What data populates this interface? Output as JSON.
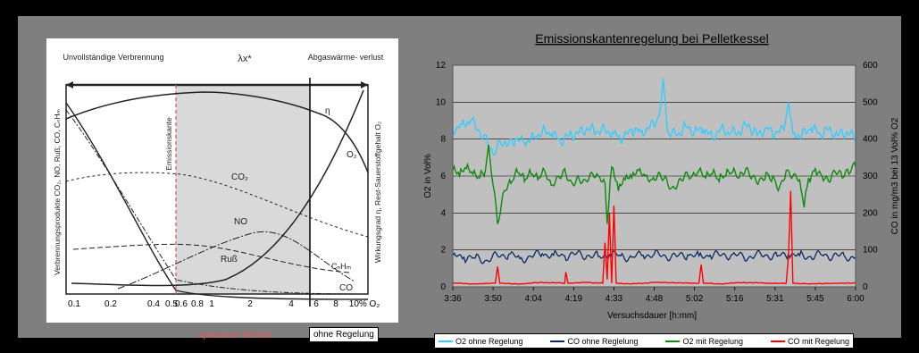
{
  "colors": {
    "page_bg": "#000000",
    "slide_bg": "#7f7f7f",
    "plot_bg": "#c0c0c0",
    "o2_without": "#33ccff",
    "co_without": "#0a2a66",
    "o2_with": "#0b8a0b",
    "co_with": "#ff0000",
    "emission_edge": "#e05a5a"
  },
  "left_figure": {
    "kind": "scanned diagram",
    "header": {
      "region_incomplete": "Unvollständige Verbrennung",
      "region_lambda": "λx*",
      "region_exhaust": "Abgaswärme- verlust"
    },
    "y_left_label": "Verbrennungsprodukte CO₂, NO, Ruß, CO, CₙHₘ",
    "y_right_label": "Wirkungsgrad η, Rest-Sauerstoffgehalt O₂",
    "emission_edge_label": "Emissionskante",
    "curve_labels": [
      "η",
      "O₂",
      "CO₂",
      "NO",
      "Ruß",
      "CₙHₘ",
      "CO"
    ],
    "x_ticks": [
      "0.1",
      "0.2",
      "0.4",
      "0.5",
      "0.6",
      "0.8",
      "1",
      "2",
      "4",
      "6",
      "8",
      "10% O₂"
    ],
    "caption_optimized": "optimierter Betrieb",
    "caption_without": "ohne Regelung"
  },
  "chart_data": {
    "type": "line",
    "title": "Emissionskantenregelung bei Pelletkessel",
    "xlabel": "Versuchsdauer [h:mm]",
    "ylabel": "O2 in Vol%",
    "y2label": "CO in mg/m3 bei 13 Vol% O2",
    "x_ticks": [
      "3:36",
      "3:50",
      "4:04",
      "4:19",
      "4:33",
      "4:48",
      "5:02",
      "5:16",
      "5:31",
      "5:45",
      "6:00"
    ],
    "ylim": [
      0,
      12
    ],
    "y_ticks": [
      "0",
      "2",
      "4",
      "6",
      "8",
      "10",
      "12"
    ],
    "y2lim": [
      0,
      600
    ],
    "y2_ticks": [
      "0",
      "100",
      "200",
      "300",
      "400",
      "500",
      "600"
    ],
    "grid": true,
    "legend_position": "bottom",
    "series": [
      {
        "name": "O2 ohne Regelung",
        "axis": "left",
        "color": "#33ccff",
        "x": [
          0,
          8,
          16,
          24,
          30,
          36,
          42,
          48,
          56,
          64,
          72,
          80,
          88,
          96,
          104,
          112,
          120,
          128,
          136,
          144,
          152,
          160,
          168,
          176,
          184,
          188,
          192,
          200,
          208,
          216,
          224,
          232,
          240,
          248,
          256,
          264,
          272,
          280,
          288,
          296,
          300,
          304,
          312,
          320,
          328,
          336,
          344,
          352,
          360
        ],
        "values": [
          8.5,
          8.8,
          9.0,
          8.4,
          8.2,
          7.2,
          7.9,
          7.6,
          8.0,
          7.8,
          8.1,
          8.4,
          8.3,
          7.9,
          8.2,
          8.3,
          8.6,
          8.4,
          8.5,
          8.3,
          8.0,
          8.5,
          8.4,
          8.6,
          9.2,
          11.3,
          8.4,
          8.2,
          8.7,
          8.4,
          8.5,
          8.1,
          8.6,
          8.3,
          8.4,
          8.8,
          8.2,
          8.6,
          8.3,
          8.5,
          10.0,
          8.3,
          8.2,
          8.6,
          8.3,
          8.5,
          8.2,
          8.4,
          8.0
        ]
      },
      {
        "name": "CO ohne Reglelung",
        "axis": "right",
        "color": "#0a2a66",
        "x": [
          0,
          10,
          20,
          30,
          40,
          50,
          60,
          70,
          80,
          90,
          100,
          110,
          120,
          130,
          140,
          150,
          160,
          170,
          180,
          190,
          200,
          210,
          220,
          230,
          240,
          250,
          260,
          270,
          280,
          290,
          300,
          310,
          320,
          330,
          340,
          350,
          360
        ],
        "values": [
          85,
          80,
          78,
          72,
          84,
          88,
          76,
          82,
          90,
          86,
          84,
          88,
          85,
          82,
          87,
          84,
          80,
          86,
          88,
          84,
          82,
          87,
          84,
          86,
          85,
          88,
          80,
          84,
          87,
          83,
          88,
          85,
          82,
          86,
          84,
          83,
          80
        ]
      },
      {
        "name": "O2 mit Regelung",
        "axis": "left",
        "color": "#0b8a0b",
        "x": [
          0,
          6,
          12,
          18,
          24,
          28,
          32,
          36,
          40,
          46,
          52,
          58,
          64,
          70,
          76,
          82,
          88,
          94,
          100,
          106,
          112,
          118,
          124,
          130,
          136,
          138,
          142,
          148,
          154,
          160,
          166,
          172,
          178,
          184,
          190,
          196,
          202,
          208,
          214,
          220,
          226,
          232,
          238,
          244,
          250,
          256,
          262,
          268,
          274,
          280,
          286,
          292,
          298,
          304,
          310,
          314,
          318,
          324,
          330,
          336,
          342,
          348,
          354,
          360
        ],
        "values": [
          6.3,
          6.0,
          6.4,
          6.1,
          5.9,
          6.0,
          7.7,
          5.5,
          3.4,
          5.2,
          5.6,
          6.2,
          5.7,
          6.1,
          5.8,
          6.3,
          5.5,
          6.0,
          6.4,
          5.7,
          6.0,
          5.8,
          6.2,
          6.0,
          5.6,
          3.4,
          6.5,
          5.2,
          5.8,
          5.9,
          6.3,
          6.0,
          5.8,
          6.2,
          6.0,
          5.4,
          5.8,
          6.2,
          6.0,
          6.3,
          5.9,
          6.1,
          5.7,
          6.0,
          6.2,
          5.9,
          6.4,
          6.0,
          5.8,
          6.2,
          6.0,
          5.4,
          6.3,
          6.0,
          5.8,
          4.3,
          5.9,
          6.4,
          6.0,
          5.7,
          6.2,
          5.9,
          6.1,
          6.5
        ]
      },
      {
        "name": "CO mit Regelung",
        "axis": "right",
        "color": "#ff0000",
        "x": [
          0,
          20,
          38,
          40,
          42,
          60,
          80,
          100,
          101,
          103,
          120,
          134,
          136,
          138,
          140,
          142,
          144,
          146,
          160,
          180,
          220,
          222,
          224,
          240,
          260,
          280,
          298,
          300,
          302,
          304,
          320,
          360
        ],
        "values": [
          10,
          8,
          10,
          55,
          10,
          8,
          12,
          10,
          40,
          10,
          12,
          10,
          120,
          20,
          200,
          10,
          220,
          10,
          8,
          12,
          10,
          60,
          10,
          8,
          12,
          10,
          10,
          80,
          260,
          10,
          8,
          10
        ]
      }
    ]
  }
}
